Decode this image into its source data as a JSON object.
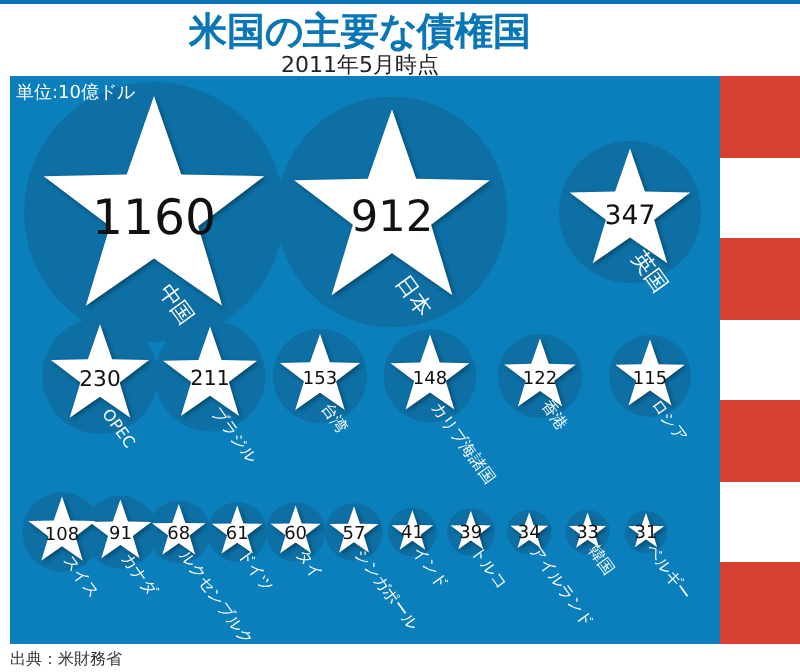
{
  "chart_data": {
    "type": "other",
    "title": "米国の主要な債権国",
    "subtitle": "2011年5月時点",
    "categories": [
      "中国",
      "日本",
      "英国",
      "OPEC",
      "ブラジル",
      "台湾",
      "カリブ海諸国",
      "香港",
      "ロシア",
      "スイス",
      "カナダ",
      "ルクセンブルク",
      "ドイツ",
      "タイ",
      "シンガポール",
      "インド",
      "トルコ",
      "アイルランド",
      "韓国",
      "ベルギー"
    ],
    "values": [
      1160,
      912,
      347,
      230,
      211,
      153,
      148,
      122,
      115,
      108,
      91,
      68,
      61,
      60,
      57,
      41,
      39,
      34,
      33,
      31
    ],
    "color": "#ffffff",
    "data_labels": true,
    "annotations": [
      "単位:10億ドル",
      "出典：米財務省"
    ]
  }
}
